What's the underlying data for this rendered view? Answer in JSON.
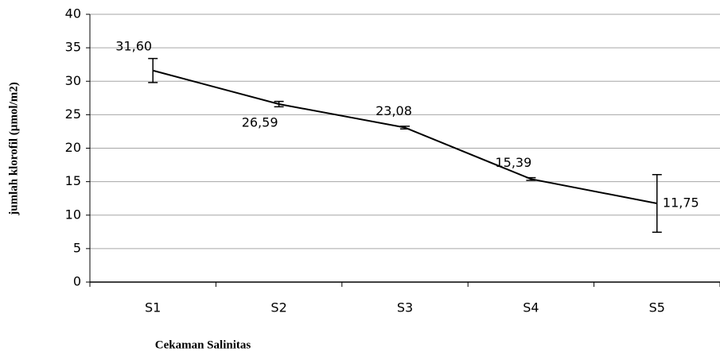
{
  "chart_data": {
    "type": "line",
    "x_label": "Cekaman Salinitas",
    "y_label": "jumlah klorofil (µmol/m2)",
    "categories": [
      "S1",
      "S2",
      "S3",
      "S4",
      "S5"
    ],
    "series": [
      {
        "name": "jumlah klorofil",
        "color": "#000000",
        "values": [
          31.6,
          26.59,
          23.08,
          15.39,
          11.75
        ],
        "value_labels": [
          "31,60",
          "26,59",
          "23,08",
          "15,39",
          "11,75"
        ],
        "errors": [
          1.8,
          0.4,
          0.2,
          0.2,
          4.3
        ]
      }
    ],
    "ylim": [
      0,
      40
    ],
    "yticks": [
      0,
      5,
      10,
      15,
      20,
      25,
      30,
      35,
      40
    ],
    "grid": true
  }
}
